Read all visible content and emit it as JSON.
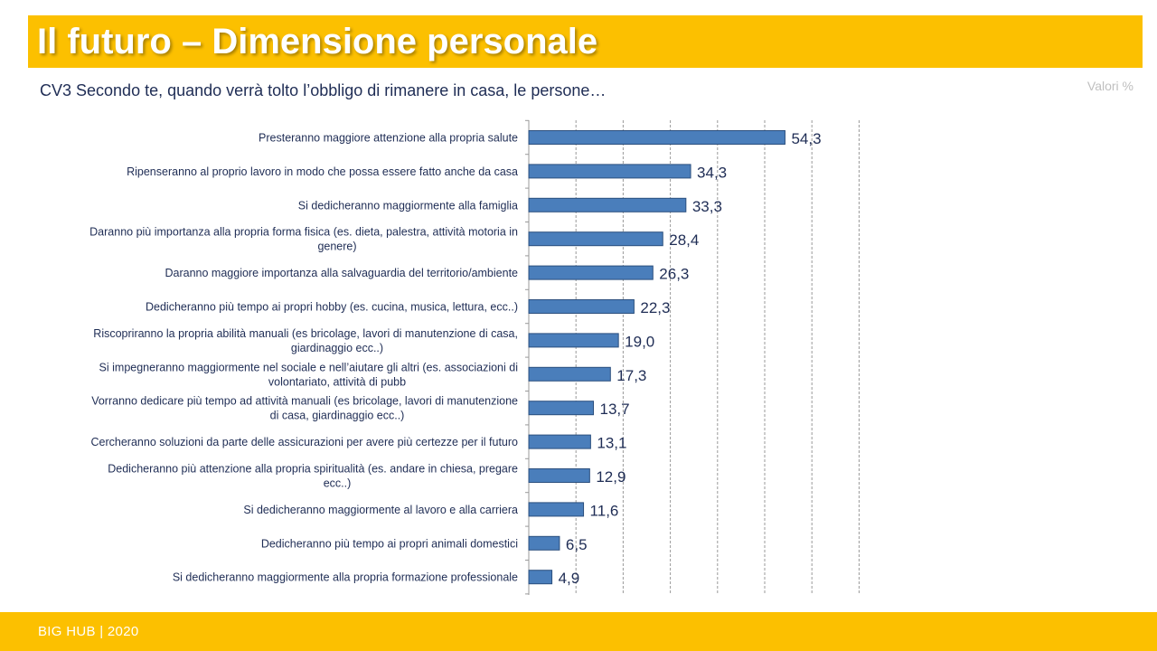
{
  "header": {
    "title": "Il futuro – Dimensione personale"
  },
  "question": "CV3 Secondo te, quando verrà tolto l’obbligo di rimanere in casa, le persone…",
  "units_label": "Valori %",
  "footer": {
    "text": "BIG HUB | 2020"
  },
  "colors": {
    "accent": "#fcc000",
    "bar": "#4a7ebb",
    "text": "#1f2d55"
  },
  "chart_data": {
    "type": "bar",
    "orientation": "horizontal",
    "categories": [
      [
        "Presteranno maggiore attenzione alla propria salute"
      ],
      [
        "Ripenseranno al proprio lavoro in modo che possa essere fatto anche da casa"
      ],
      [
        "Si dedicheranno maggiormente alla famiglia"
      ],
      [
        "Daranno più importanza alla propria forma fisica (es. dieta, palestra, attività motoria in",
        "genere)"
      ],
      [
        "Daranno maggiore importanza alla salvaguardia del territorio/ambiente"
      ],
      [
        "Dedicheranno più tempo ai propri hobby (es. cucina, musica, lettura, ecc..)"
      ],
      [
        "Riscopriranno la propria abilità manuali (es bricolage, lavori di manutenzione di casa,",
        "giardinaggio ecc..)"
      ],
      [
        "Si impegneranno maggiormente nel sociale e nell’aiutare gli altri (es. associazioni di",
        "volontariato, attività di pubb"
      ],
      [
        "Vorranno dedicare più tempo ad attività manuali (es bricolage, lavori di manutenzione",
        "di casa, giardinaggio ecc..)"
      ],
      [
        "Cercheranno soluzioni da parte delle assicurazioni per avere più certezze per il futuro"
      ],
      [
        "Dedicheranno più attenzione alla propria spiritualità (es. andare in chiesa, pregare",
        "ecc..)"
      ],
      [
        "Si dedicheranno maggiormente al lavoro e alla carriera"
      ],
      [
        "Dedicheranno più tempo ai propri animali domestici"
      ],
      [
        "Si dedicheranno maggiormente alla propria formazione professionale"
      ]
    ],
    "values": [
      54.3,
      34.3,
      33.3,
      28.4,
      26.3,
      22.3,
      19.0,
      17.3,
      13.7,
      13.1,
      12.9,
      11.6,
      6.5,
      4.9
    ],
    "value_labels": [
      "54,3",
      "34,3",
      "33,3",
      "28,4",
      "26,3",
      "22,3",
      "19,0",
      "17,3",
      "13,7",
      "13,1",
      "12,9",
      "11,6",
      "6,5",
      "4,9"
    ],
    "xlim": [
      0,
      70
    ],
    "grid": true,
    "grid_style": "dashed vertical",
    "legend": "none"
  }
}
